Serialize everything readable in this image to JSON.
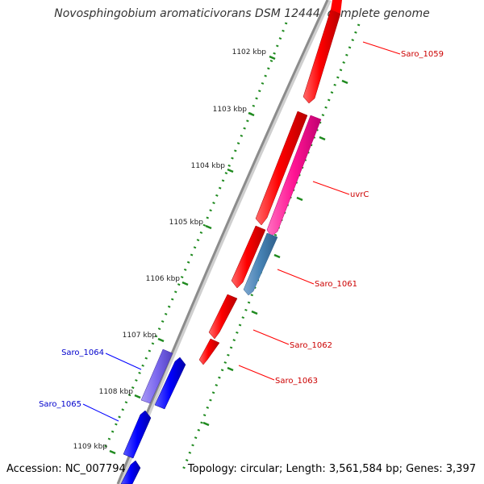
{
  "title": "Novosphingobium aromaticivorans DSM 12444, complete genome",
  "accession": "Accession: NC_007794",
  "topology": "Topology: circular; Length: 3,561,584 bp; Genes: 3,397",
  "ticks": [
    "1102 kbp",
    "1103 kbp",
    "1104 kbp",
    "1105 kbp",
    "1106 kbp",
    "1107 kbp",
    "1108 kbp",
    "1109 kbp"
  ],
  "genes": {
    "saro_1059": "Saro_1059",
    "uvrC": "uvrC",
    "saro_1061": "Saro_1061",
    "saro_1062": "Saro_1062",
    "saro_1063": "Saro_1063",
    "saro_1064": "Saro_1064",
    "saro_1065": "Saro_1065"
  },
  "colors": {
    "forward_gene": "#ff0000",
    "uvrC": "#ff1493",
    "saro_1061": "#4682b4",
    "reverse_gene": "#0000ff",
    "saro_1064": "#7b68ee",
    "tick": "#1f8a1f",
    "backbone": "#8c8c8c",
    "label_forward": "#cc0000",
    "label_reverse": "#0000cc"
  }
}
